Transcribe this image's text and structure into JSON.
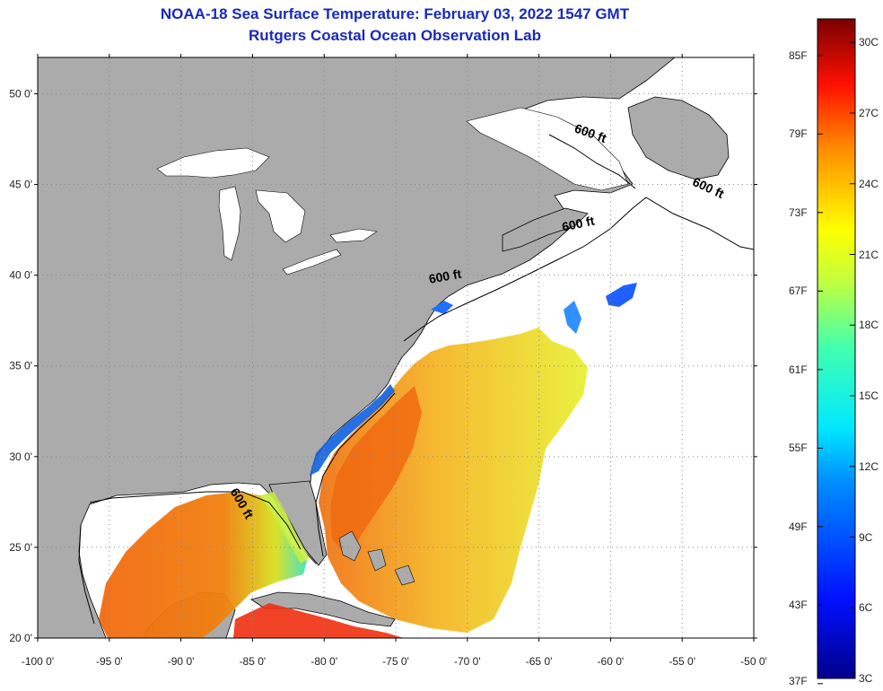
{
  "title": {
    "line1": "NOAA-18 Sea Surface Temperature:  February 03, 2022 1547 GMT",
    "line2": "Rutgers Coastal Ocean Observation Lab"
  },
  "map": {
    "lon_range": [
      -100,
      -50
    ],
    "lat_range": [
      20,
      52
    ],
    "lat_ticks": [
      {
        "value": 20,
        "label": "20 0'"
      },
      {
        "value": 25,
        "label": "25 0'"
      },
      {
        "value": 30,
        "label": "30 0'"
      },
      {
        "value": 35,
        "label": "35 0'"
      },
      {
        "value": 40,
        "label": "40 0'"
      },
      {
        "value": 45,
        "label": "45 0'"
      },
      {
        "value": 50,
        "label": "50 0'"
      }
    ],
    "lon_ticks": [
      {
        "value": -100,
        "label": "-100 0'"
      },
      {
        "value": -95,
        "label": "-95 0'"
      },
      {
        "value": -90,
        "label": "-90 0'"
      },
      {
        "value": -85,
        "label": "-85 0'"
      },
      {
        "value": -80,
        "label": "-80 0'"
      },
      {
        "value": -75,
        "label": "-75 0'"
      },
      {
        "value": -70,
        "label": "-70 0'"
      },
      {
        "value": -65,
        "label": "-65 0'"
      },
      {
        "value": -60,
        "label": "-60 0'"
      },
      {
        "value": -55,
        "label": "-55 0'"
      },
      {
        "value": -50,
        "label": "-50 0'"
      }
    ],
    "contour_labels": [
      {
        "text": "600 ft",
        "lon": -61.5,
        "lat": 47.6,
        "rotate": 20
      },
      {
        "text": "600 ft",
        "lon": -53.3,
        "lat": 44.6,
        "rotate": 25
      },
      {
        "text": "600 ft",
        "lon": -62.2,
        "lat": 42.6,
        "rotate": -12
      },
      {
        "text": "600 ft",
        "lon": -71.5,
        "lat": 39.7,
        "rotate": -10
      },
      {
        "text": "600 ft",
        "lon": -86.0,
        "lat": 27.3,
        "rotate": 60
      }
    ],
    "colors": {
      "land": "#ababab",
      "water_nodata": "#ffffff",
      "grid": "#888888"
    }
  },
  "colorbar": {
    "fahrenheit_labels": [
      "85F",
      "79F",
      "73F",
      "67F",
      "61F",
      "55F",
      "49F",
      "43F",
      "37F"
    ],
    "celsius_labels": [
      "30C",
      "27C",
      "24C",
      "21C",
      "18C",
      "15C",
      "12C",
      "9C",
      "6C",
      "3C"
    ],
    "min_c": 3,
    "max_c": 31
  }
}
